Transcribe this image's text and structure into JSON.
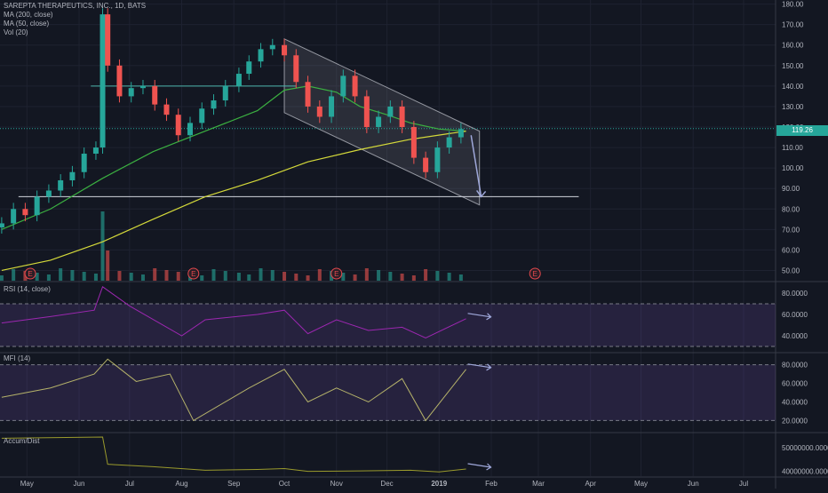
{
  "header": {
    "symbol_line": "SAREPTA THERAPEUTICS, INC., 1D, BATS",
    "ma200_label": "MA (200, close)",
    "ma50_label": "MA (50, close)",
    "vol_label": "Vol (20)"
  },
  "panes": {
    "rsi_label": "RSI (14, close)",
    "mfi_label": "MFI (14)",
    "ad_label": "Accum/Dist"
  },
  "last_price": "119.26",
  "colors": {
    "background": "#131722",
    "grid": "#1e2230",
    "candle_up": "#26a69a",
    "candle_down": "#ef5350",
    "ma50": "#3bb041",
    "ma200": "#d4d93a",
    "rsi": "#9c27b0",
    "mfi": "#b5b26a",
    "ad": "#9a9a2c",
    "channel": "#9598a1",
    "arrow": "#9fa8da",
    "earnings": "#e5484d"
  },
  "chart_data": [
    {
      "type": "candlestick",
      "title": "SAREPTA THERAPEUTICS, INC., 1D, BATS",
      "x_ticks": [
        "May",
        "Jun",
        "Jul",
        "Aug",
        "Sep",
        "Oct",
        "Nov",
        "Dec",
        "2019",
        "Feb",
        "Mar",
        "Apr",
        "May",
        "Jun",
        "Jul"
      ],
      "x_range": [
        "2018-04-15",
        "2019-07-20"
      ],
      "y_ticks": [
        50,
        60,
        70,
        80,
        90,
        100,
        110,
        120,
        130,
        140,
        150,
        160,
        170,
        180
      ],
      "ylim": [
        45,
        182
      ],
      "last_price": 119.26,
      "series": [
        {
          "name": "Close",
          "x": [
            "2018-04-16",
            "2018-04-23",
            "2018-04-30",
            "2018-05-07",
            "2018-05-14",
            "2018-05-21",
            "2018-05-28",
            "2018-06-04",
            "2018-06-11",
            "2018-06-15",
            "2018-06-18",
            "2018-06-25",
            "2018-07-02",
            "2018-07-09",
            "2018-07-16",
            "2018-07-23",
            "2018-07-30",
            "2018-08-06",
            "2018-08-13",
            "2018-08-20",
            "2018-08-27",
            "2018-09-04",
            "2018-09-10",
            "2018-09-17",
            "2018-09-24",
            "2018-10-01",
            "2018-10-08",
            "2018-10-15",
            "2018-10-22",
            "2018-10-29",
            "2018-11-05",
            "2018-11-12",
            "2018-11-19",
            "2018-11-26",
            "2018-12-03",
            "2018-12-10",
            "2018-12-17",
            "2018-12-24",
            "2018-12-31",
            "2019-01-07",
            "2019-01-14"
          ],
          "y": [
            73,
            80,
            77,
            86,
            89,
            94,
            98,
            107,
            110,
            175,
            150,
            135,
            139,
            140,
            131,
            126,
            116,
            122,
            129,
            133,
            140,
            146,
            152,
            158,
            160,
            155,
            142,
            130,
            125,
            135,
            145,
            135,
            120,
            125,
            130,
            120,
            105,
            98,
            110,
            115,
            119
          ]
        }
      ],
      "indicators": [
        {
          "name": "MA (50, close)",
          "x": [
            "2018-04-16",
            "2018-05-15",
            "2018-06-15",
            "2018-07-15",
            "2018-08-15",
            "2018-09-15",
            "2018-10-01",
            "2018-10-15",
            "2018-11-01",
            "2018-11-15",
            "2018-12-01",
            "2018-12-15",
            "2019-01-01",
            "2019-01-17"
          ],
          "y": [
            70,
            80,
            95,
            108,
            118,
            128,
            138,
            140,
            137,
            130,
            126,
            122,
            119,
            118
          ]
        },
        {
          "name": "MA (200, close)",
          "x": [
            "2018-04-16",
            "2018-05-15",
            "2018-06-15",
            "2018-07-15",
            "2018-08-15",
            "2018-09-15",
            "2018-10-15",
            "2018-11-15",
            "2018-12-15",
            "2019-01-17"
          ],
          "y": [
            50,
            55,
            64,
            75,
            86,
            94,
            103,
            109,
            114,
            118
          ]
        }
      ],
      "annotations": {
        "horizontal_lines": [
          140,
          119.26,
          86
        ],
        "channel_upper": [
          [
            "2018-10-01",
            163
          ],
          [
            "2019-01-25",
            118
          ]
        ],
        "channel_lower": [
          [
            "2018-10-01",
            127
          ],
          [
            "2019-01-25",
            82
          ]
        ],
        "forecast_arrow": [
          [
            "2019-01-20",
            116
          ],
          [
            "2019-01-26",
            86
          ]
        ],
        "earnings_markers": [
          "2018-05-03",
          "2018-08-08",
          "2018-11-01",
          "2019-02-27"
        ],
        "earnings_label": "E"
      }
    },
    {
      "type": "line",
      "title": "RSI (14, close)",
      "y_ticks": [
        "40.0000",
        "60.0000",
        "80.0000"
      ],
      "ylim": [
        25,
        90
      ],
      "guides": [
        30,
        70
      ],
      "x": [
        "2018-04-16",
        "2018-05-15",
        "2018-06-10",
        "2018-06-15",
        "2018-07-01",
        "2018-08-01",
        "2018-08-15",
        "2018-09-15",
        "2018-10-01",
        "2018-10-15",
        "2018-11-01",
        "2018-11-20",
        "2018-12-10",
        "2018-12-24",
        "2019-01-17"
      ],
      "y": [
        52,
        58,
        64,
        86,
        68,
        40,
        55,
        60,
        64,
        42,
        55,
        45,
        48,
        38,
        56
      ]
    },
    {
      "type": "line",
      "title": "MFI (14)",
      "y_ticks": [
        "20.0000",
        "40.0000",
        "60.0000",
        "80.0000"
      ],
      "ylim": [
        8,
        92
      ],
      "guides": [
        20,
        80
      ],
      "x": [
        "2018-04-16",
        "2018-05-15",
        "2018-06-10",
        "2018-06-18",
        "2018-07-05",
        "2018-07-25",
        "2018-08-08",
        "2018-09-10",
        "2018-10-01",
        "2018-10-15",
        "2018-11-01",
        "2018-11-20",
        "2018-12-10",
        "2018-12-24",
        "2019-01-17"
      ],
      "y": [
        45,
        55,
        70,
        86,
        62,
        70,
        20,
        55,
        75,
        40,
        55,
        40,
        65,
        20,
        75
      ]
    },
    {
      "type": "line",
      "title": "Accum/Dist",
      "y_ticks": [
        "40000000.0000",
        "50000000.0000"
      ],
      "ylim": [
        38000000,
        56000000
      ],
      "x": [
        "2018-04-16",
        "2018-06-15",
        "2018-06-18",
        "2018-07-15",
        "2018-08-15",
        "2018-09-15",
        "2018-10-01",
        "2018-10-15",
        "2018-11-15",
        "2018-12-15",
        "2019-01-01",
        "2019-01-17"
      ],
      "y": [
        54000000,
        54500000,
        43000000,
        42000000,
        40500000,
        40800000,
        41200000,
        40000000,
        40200000,
        40500000,
        39800000,
        41000000
      ]
    }
  ]
}
